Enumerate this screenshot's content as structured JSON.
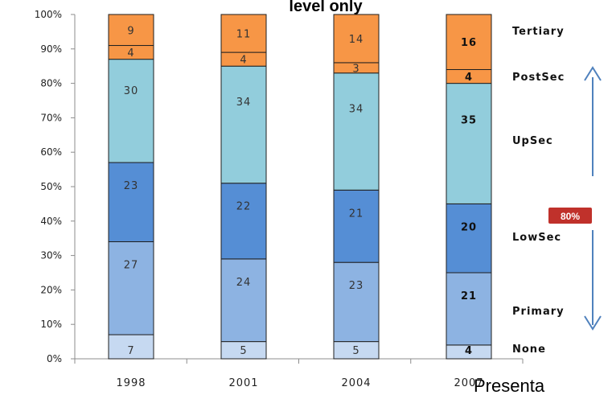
{
  "title_fragment": "level only",
  "footer_fragment": "Presenta",
  "badge": {
    "label": "80%"
  },
  "colors": {
    "None": "#c6d9f1",
    "Primary": "#8db3e2",
    "LowSec": "#558ed5",
    "UpSec": "#92cddc",
    "PostSec": "#f79646",
    "Tertiary": "#f79646",
    "arrow": "#4f81bd",
    "badge": "#c0312b"
  },
  "chart_data": {
    "type": "bar",
    "stacked": true,
    "percent": true,
    "categories": [
      "1998",
      "2001",
      "2004",
      "2007"
    ],
    "series": [
      {
        "name": "None",
        "values": [
          7,
          5,
          5,
          4
        ]
      },
      {
        "name": "Primary",
        "values": [
          27,
          24,
          23,
          21
        ]
      },
      {
        "name": "LowSec",
        "values": [
          23,
          22,
          21,
          20
        ]
      },
      {
        "name": "UpSec",
        "values": [
          30,
          34,
          34,
          35
        ]
      },
      {
        "name": "PostSec",
        "values": [
          4,
          4,
          3,
          4
        ]
      },
      {
        "name": "Tertiary",
        "values": [
          9,
          11,
          14,
          16
        ]
      }
    ],
    "y_ticks": [
      "0%",
      "10%",
      "20%",
      "30%",
      "40%",
      "50%",
      "60%",
      "70%",
      "80%",
      "90%",
      "100%"
    ],
    "ylim": [
      0,
      100
    ],
    "grid": false,
    "legend_position": "right"
  }
}
